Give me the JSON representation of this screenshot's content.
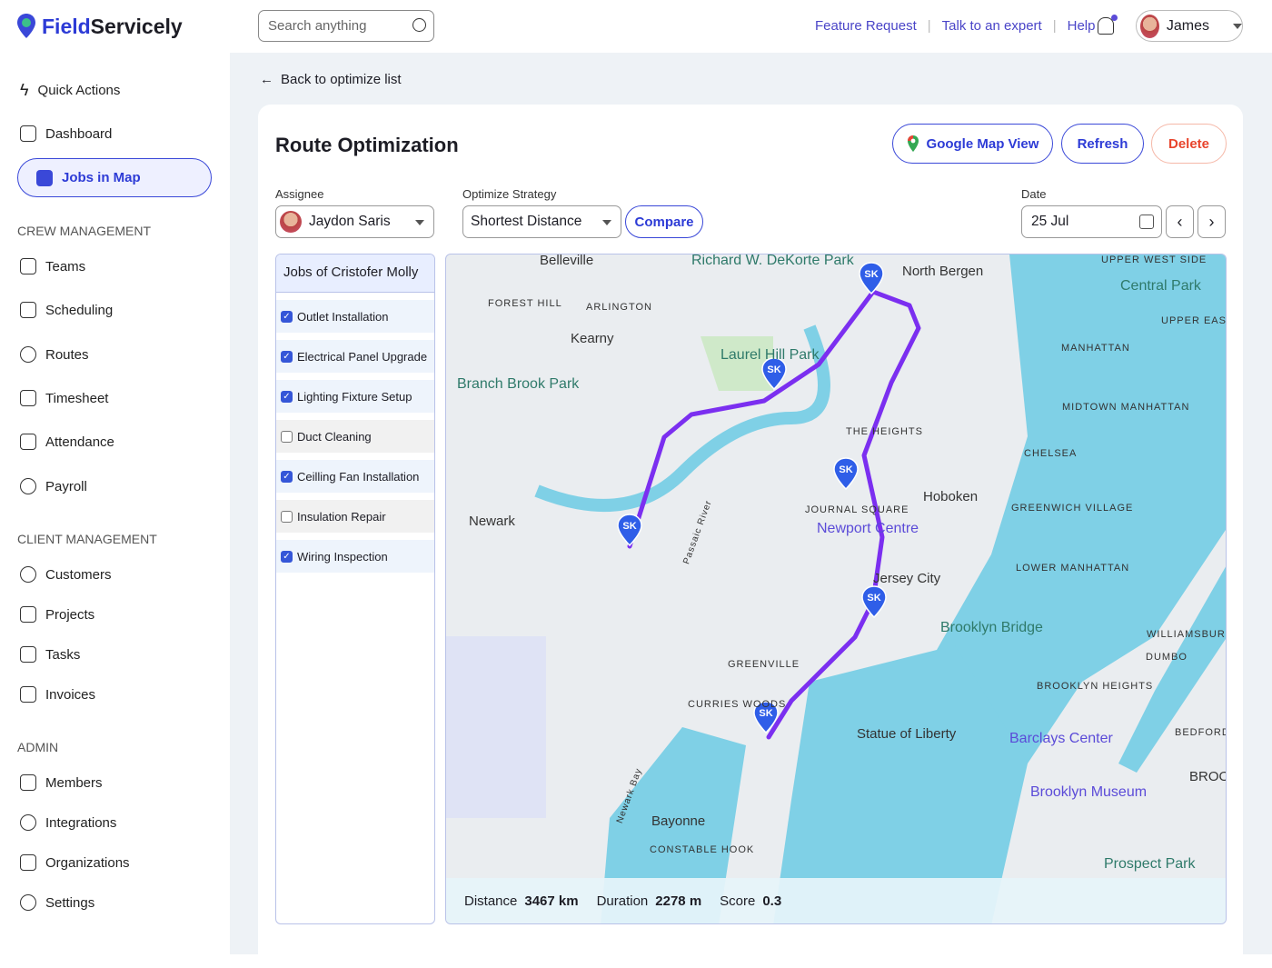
{
  "app": {
    "brand_a": "Field",
    "brand_b": "Servicely"
  },
  "header": {
    "search_placeholder": "Search anything",
    "links": [
      "Feature Request",
      "Talk to an expert",
      "Help"
    ],
    "user": "James"
  },
  "sidebar": {
    "items": [
      "Quick Actions",
      "Dashboard",
      "Jobs in Map"
    ],
    "crew_title": "CREW MANAGEMENT",
    "crew": [
      "Teams",
      "Scheduling",
      "Routes",
      "Timesheet",
      "Attendance",
      "Payroll"
    ],
    "client_title": "CLIENT MANAGEMENT",
    "client": [
      "Customers",
      "Projects",
      "Tasks",
      "Invoices"
    ],
    "admin_title": "ADMIN",
    "admin": [
      "Members",
      "Integrations",
      "Organizations",
      "Settings"
    ]
  },
  "page": {
    "back": "Back to optimize list",
    "title": "Route Optimization",
    "google_map_view": "Google Map View",
    "refresh": "Refresh",
    "delete": "Delete",
    "assignee_label": "Assignee",
    "assignee": "Jaydon Saris",
    "strategy_label": "Optimize Strategy",
    "strategy": "Shortest Distance",
    "compare": "Compare",
    "date_label": "Date",
    "date": "25 Jul"
  },
  "jobs": {
    "title": "Jobs of Cristofer Molly",
    "items": [
      {
        "label": "Outlet Installation",
        "checked": true
      },
      {
        "label": "Electrical Panel Upgrade",
        "checked": true
      },
      {
        "label": "Lighting Fixture Setup",
        "checked": true
      },
      {
        "label": "Duct Cleaning",
        "checked": false
      },
      {
        "label": "Ceilling Fan Installation",
        "checked": true
      },
      {
        "label": "Insulation Repair",
        "checked": false
      },
      {
        "label": "Wiring Inspection",
        "checked": true
      }
    ]
  },
  "map": {
    "pin_label": "SK",
    "route_color": "#7b2ff0",
    "pin_color": "#2f5ee8",
    "labels": [
      "Belleville",
      "Richard W. DeKorte Park",
      "North Bergen",
      "Central Park",
      "MANHATTAN",
      "Kearny",
      "Laurel Hill Park",
      "Branch Brook Park",
      "Newark",
      "Hoboken",
      "Newport Centre",
      "Jersey City",
      "Brooklyn Bridge",
      "Statue of Liberty",
      "Barclays Center",
      "Brooklyn Museum",
      "Bayonne",
      "Prospect Park",
      "FOREST HILL",
      "ARLINGTON",
      "MIDTOWN MANHATTAN",
      "CHELSEA",
      "GREENWICH VILLAGE",
      "LOWER MANHATTAN",
      "GREENVILLE",
      "DUMBO",
      "BROOKLYN HEIGHTS",
      "WILLIAMSBURG",
      "UPPER EAST SIDE",
      "UPPER WEST SIDE",
      "JOURNAL SQUARE",
      "THE HEIGHTS",
      "CURRIES WOODS",
      "CONSTABLE HOOK",
      "BEDFORD-",
      "BROO",
      "Passaic River",
      "Newark Bay"
    ]
  },
  "stats": {
    "distance_label": "Distance",
    "distance": "3467 km",
    "duration_label": "Duration",
    "duration": "2278 m",
    "score_label": "Score",
    "score": "0.3"
  }
}
